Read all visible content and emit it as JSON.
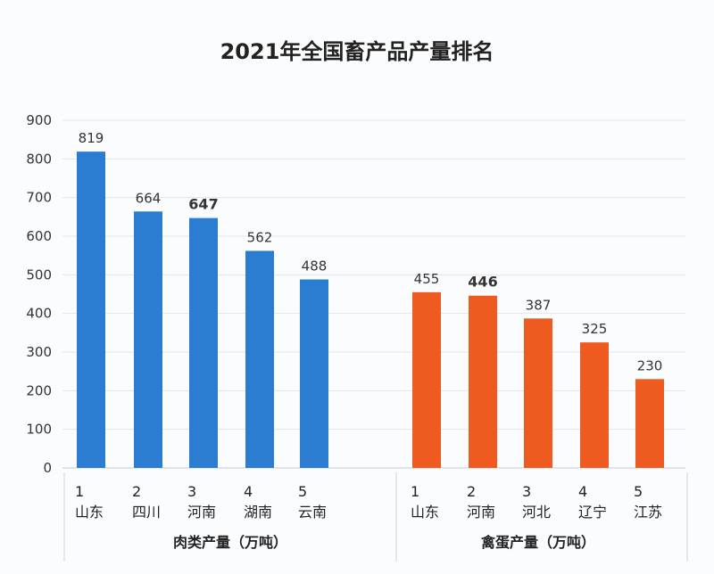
{
  "chart_data": {
    "type": "bar",
    "title": "2021年全国畜产品产量排名",
    "ylim": [
      0,
      900
    ],
    "yticks": [
      0,
      100,
      200,
      300,
      400,
      500,
      600,
      700,
      800,
      900
    ],
    "grid": true,
    "groups": [
      {
        "label": "肉类产量（万吨）",
        "color": "#2a7dd1",
        "ranks": [
          "1",
          "2",
          "3",
          "4",
          "5"
        ],
        "categories": [
          "山东",
          "四川",
          "河南",
          "湖南",
          "云南"
        ],
        "values": [
          819,
          664,
          647,
          562,
          488
        ],
        "emphasized": [
          false,
          false,
          true,
          false,
          false
        ]
      },
      {
        "label": "禽蛋产量（万吨）",
        "color": "#ee5a1f",
        "ranks": [
          "1",
          "2",
          "3",
          "4",
          "5"
        ],
        "categories": [
          "山东",
          "河南",
          "河北",
          "辽宁",
          "江苏"
        ],
        "values": [
          455,
          446,
          387,
          325,
          230
        ],
        "emphasized": [
          false,
          true,
          false,
          false,
          false
        ]
      }
    ]
  }
}
